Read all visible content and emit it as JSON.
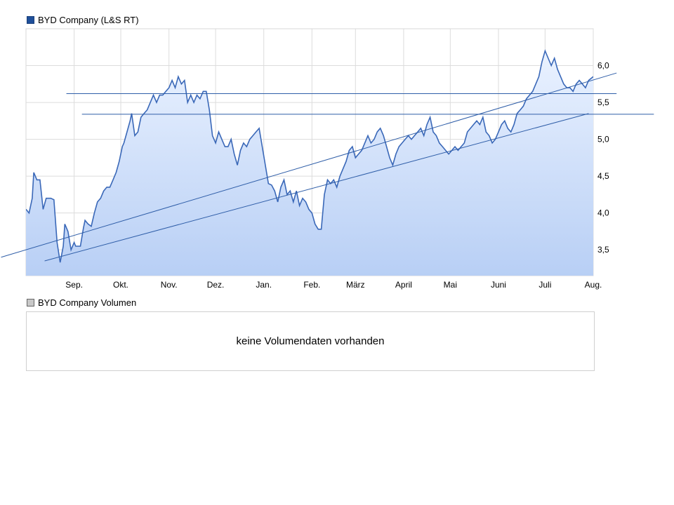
{
  "price_legend": {
    "label": "BYD Company (L&S RT)",
    "color": "#1f4f9a"
  },
  "volume_legend": {
    "label": "BYD Company Volumen",
    "color": "#c8c8c8"
  },
  "volume_panel": {
    "message": "keine Volumendaten vorhanden"
  },
  "chart_data": {
    "type": "area",
    "series_name": "BYD Company (L&S RT)",
    "line_color": "#3a68b8",
    "fill_top_color": "#eaf2ff",
    "fill_bottom_color": "#b8cff5",
    "trendline_color": "#2f5ea8",
    "y_axis": {
      "position": "right",
      "ticks": [
        6.0,
        5.5,
        5.0,
        4.5,
        4.0,
        3.5
      ],
      "tick_labels": [
        "6,0",
        "5,5",
        "5,0",
        "4,5",
        "4,0",
        "3,5"
      ]
    },
    "x_axis": {
      "labels": [
        "Sep.",
        "Okt.",
        "Nov.",
        "Dez.",
        "Jan.",
        "Feb.",
        "März",
        "April",
        "Mai",
        "Juni",
        "Juli",
        "Aug."
      ]
    },
    "grid": true,
    "x_domain": [
      0,
      365
    ],
    "y_domain": [
      3.15,
      6.5
    ],
    "x_ticks": [
      31,
      61,
      92,
      122,
      153,
      184,
      212,
      243,
      273,
      304,
      334,
      365
    ],
    "points": [
      [
        0,
        4.05
      ],
      [
        2,
        4.0
      ],
      [
        4,
        4.2
      ],
      [
        5,
        4.55
      ],
      [
        7,
        4.45
      ],
      [
        9,
        4.45
      ],
      [
        11,
        4.05
      ],
      [
        13,
        4.2
      ],
      [
        16,
        4.2
      ],
      [
        18,
        4.18
      ],
      [
        20,
        3.6
      ],
      [
        22,
        3.33
      ],
      [
        24,
        3.55
      ],
      [
        25,
        3.85
      ],
      [
        27,
        3.75
      ],
      [
        29,
        3.5
      ],
      [
        31,
        3.6
      ],
      [
        32,
        3.55
      ],
      [
        35,
        3.55
      ],
      [
        37,
        3.8
      ],
      [
        38,
        3.9
      ],
      [
        40,
        3.85
      ],
      [
        42,
        3.82
      ],
      [
        44,
        4.0
      ],
      [
        46,
        4.15
      ],
      [
        48,
        4.2
      ],
      [
        50,
        4.3
      ],
      [
        52,
        4.35
      ],
      [
        54,
        4.35
      ],
      [
        56,
        4.45
      ],
      [
        58,
        4.55
      ],
      [
        60,
        4.7
      ],
      [
        62,
        4.9
      ],
      [
        63,
        4.95
      ],
      [
        65,
        5.1
      ],
      [
        67,
        5.25
      ],
      [
        68,
        5.35
      ],
      [
        70,
        5.05
      ],
      [
        72,
        5.1
      ],
      [
        74,
        5.3
      ],
      [
        76,
        5.35
      ],
      [
        78,
        5.4
      ],
      [
        80,
        5.5
      ],
      [
        82,
        5.6
      ],
      [
        84,
        5.5
      ],
      [
        86,
        5.6
      ],
      [
        88,
        5.6
      ],
      [
        90,
        5.65
      ],
      [
        92,
        5.7
      ],
      [
        94,
        5.8
      ],
      [
        96,
        5.7
      ],
      [
        98,
        5.85
      ],
      [
        100,
        5.75
      ],
      [
        102,
        5.8
      ],
      [
        104,
        5.5
      ],
      [
        106,
        5.6
      ],
      [
        108,
        5.5
      ],
      [
        110,
        5.6
      ],
      [
        112,
        5.55
      ],
      [
        114,
        5.65
      ],
      [
        116,
        5.65
      ],
      [
        118,
        5.4
      ],
      [
        120,
        5.05
      ],
      [
        122,
        4.95
      ],
      [
        124,
        5.1
      ],
      [
        126,
        5.0
      ],
      [
        128,
        4.9
      ],
      [
        130,
        4.9
      ],
      [
        132,
        5.0
      ],
      [
        134,
        4.8
      ],
      [
        136,
        4.65
      ],
      [
        138,
        4.85
      ],
      [
        140,
        4.95
      ],
      [
        142,
        4.9
      ],
      [
        144,
        5.0
      ],
      [
        146,
        5.05
      ],
      [
        148,
        5.1
      ],
      [
        150,
        5.15
      ],
      [
        152,
        4.9
      ],
      [
        154,
        4.65
      ],
      [
        156,
        4.4
      ],
      [
        158,
        4.38
      ],
      [
        160,
        4.3
      ],
      [
        162,
        4.15
      ],
      [
        164,
        4.35
      ],
      [
        166,
        4.45
      ],
      [
        168,
        4.25
      ],
      [
        170,
        4.3
      ],
      [
        172,
        4.15
      ],
      [
        174,
        4.3
      ],
      [
        176,
        4.1
      ],
      [
        178,
        4.2
      ],
      [
        180,
        4.15
      ],
      [
        182,
        4.05
      ],
      [
        184,
        4.0
      ],
      [
        186,
        3.85
      ],
      [
        188,
        3.78
      ],
      [
        190,
        3.78
      ],
      [
        192,
        4.25
      ],
      [
        194,
        4.45
      ],
      [
        196,
        4.4
      ],
      [
        198,
        4.45
      ],
      [
        200,
        4.35
      ],
      [
        202,
        4.5
      ],
      [
        204,
        4.6
      ],
      [
        206,
        4.7
      ],
      [
        208,
        4.85
      ],
      [
        210,
        4.9
      ],
      [
        212,
        4.75
      ],
      [
        214,
        4.8
      ],
      [
        216,
        4.85
      ],
      [
        218,
        4.95
      ],
      [
        220,
        5.05
      ],
      [
        222,
        4.95
      ],
      [
        224,
        5.0
      ],
      [
        226,
        5.1
      ],
      [
        228,
        5.15
      ],
      [
        230,
        5.05
      ],
      [
        232,
        4.9
      ],
      [
        234,
        4.75
      ],
      [
        236,
        4.65
      ],
      [
        238,
        4.8
      ],
      [
        240,
        4.9
      ],
      [
        242,
        4.95
      ],
      [
        244,
        5.0
      ],
      [
        246,
        5.05
      ],
      [
        248,
        5.0
      ],
      [
        250,
        5.05
      ],
      [
        252,
        5.1
      ],
      [
        254,
        5.15
      ],
      [
        256,
        5.05
      ],
      [
        258,
        5.2
      ],
      [
        260,
        5.3
      ],
      [
        262,
        5.1
      ],
      [
        264,
        5.05
      ],
      [
        266,
        4.95
      ],
      [
        268,
        4.9
      ],
      [
        270,
        4.85
      ],
      [
        272,
        4.8
      ],
      [
        274,
        4.85
      ],
      [
        276,
        4.9
      ],
      [
        278,
        4.85
      ],
      [
        280,
        4.9
      ],
      [
        282,
        4.95
      ],
      [
        284,
        5.1
      ],
      [
        286,
        5.15
      ],
      [
        288,
        5.2
      ],
      [
        290,
        5.25
      ],
      [
        292,
        5.2
      ],
      [
        294,
        5.3
      ],
      [
        296,
        5.1
      ],
      [
        298,
        5.05
      ],
      [
        300,
        4.95
      ],
      [
        302,
        5.0
      ],
      [
        304,
        5.1
      ],
      [
        306,
        5.2
      ],
      [
        308,
        5.25
      ],
      [
        310,
        5.15
      ],
      [
        312,
        5.1
      ],
      [
        314,
        5.2
      ],
      [
        316,
        5.35
      ],
      [
        318,
        5.4
      ],
      [
        320,
        5.45
      ],
      [
        322,
        5.55
      ],
      [
        324,
        5.6
      ],
      [
        326,
        5.65
      ],
      [
        328,
        5.75
      ],
      [
        330,
        5.85
      ],
      [
        332,
        6.05
      ],
      [
        334,
        6.2
      ],
      [
        336,
        6.1
      ],
      [
        338,
        6.0
      ],
      [
        340,
        6.1
      ],
      [
        342,
        5.95
      ],
      [
        344,
        5.85
      ],
      [
        346,
        5.75
      ],
      [
        348,
        5.7
      ],
      [
        350,
        5.7
      ],
      [
        352,
        5.65
      ],
      [
        354,
        5.75
      ],
      [
        356,
        5.8
      ],
      [
        358,
        5.75
      ],
      [
        360,
        5.7
      ],
      [
        362,
        5.8
      ],
      [
        365,
        5.85
      ]
    ],
    "trendlines": [
      {
        "from": [
          -16,
          3.4
        ],
        "to": [
          380,
          5.9
        ]
      },
      {
        "from": [
          12,
          3.35
        ],
        "to": [
          362,
          5.35
        ]
      },
      {
        "from": [
          26,
          5.62
        ],
        "to": [
          380,
          5.62
        ]
      },
      {
        "from": [
          36,
          5.34
        ],
        "to": [
          404,
          5.34
        ]
      }
    ]
  }
}
